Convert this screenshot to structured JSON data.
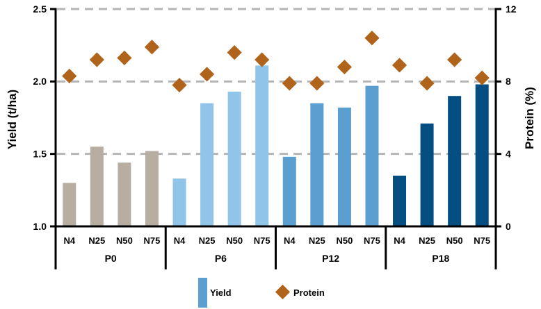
{
  "chart_data": {
    "type": "bar",
    "overlay_type": "scatter",
    "title": "",
    "ylabel": "Yield (t/ha)",
    "y2label": "Protein (%)",
    "ylim": [
      1.0,
      2.5
    ],
    "y2lim": [
      0,
      12
    ],
    "yticks": [
      "1.0",
      "1.5",
      "2.0",
      "2.5"
    ],
    "y2ticks": [
      "0",
      "4",
      "8",
      "12"
    ],
    "gridlines_at_yield": [
      1.5,
      2.0,
      2.5
    ],
    "categories": [
      "N4",
      "N25",
      "N50",
      "N75"
    ],
    "groups": [
      {
        "label": "P0",
        "bar_color": "#B8ADA1",
        "yield_values": [
          1.3,
          1.55,
          1.44,
          1.52
        ],
        "protein_values": [
          8.3,
          9.2,
          9.3,
          9.9
        ]
      },
      {
        "label": "P6",
        "bar_color": "#90C4E8",
        "yield_values": [
          1.33,
          1.85,
          1.93,
          2.11
        ],
        "protein_values": [
          7.8,
          8.4,
          9.6,
          9.2
        ]
      },
      {
        "label": "P12",
        "bar_color": "#5B9FD1",
        "yield_values": [
          1.48,
          1.85,
          1.82,
          1.97
        ],
        "protein_values": [
          7.9,
          7.9,
          8.8,
          10.4
        ]
      },
      {
        "label": "P18",
        "bar_color": "#044E81",
        "yield_values": [
          1.35,
          1.71,
          1.9,
          1.98
        ],
        "protein_values": [
          8.9,
          7.9,
          9.2,
          8.2
        ]
      }
    ],
    "legend": [
      {
        "label": "Yield",
        "swatch": "bar",
        "color": "#5B9FD1"
      },
      {
        "label": "Protein",
        "swatch": "diamond",
        "color": "#B0641B"
      }
    ],
    "marker_color": "#B0641B",
    "grid_color": "#B5B5B5",
    "axis_color": "#000000",
    "legend_position": "bottom"
  }
}
